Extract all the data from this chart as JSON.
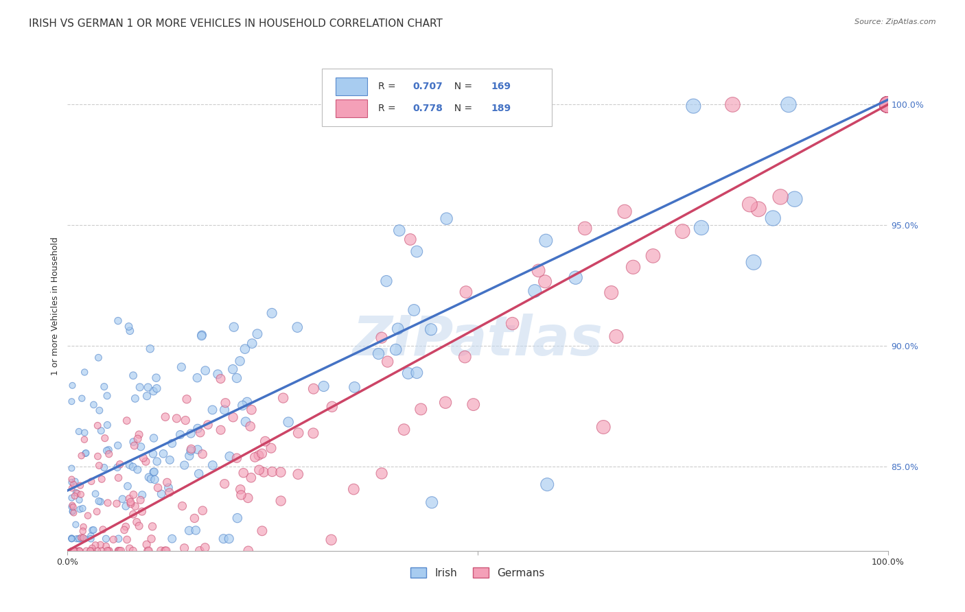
{
  "title": "IRISH VS GERMAN 1 OR MORE VEHICLES IN HOUSEHOLD CORRELATION CHART",
  "source": "Source: ZipAtlas.com",
  "ylabel": "1 or more Vehicles in Household",
  "ytick_labels": [
    "85.0%",
    "90.0%",
    "95.0%",
    "100.0%"
  ],
  "ytick_values": [
    0.85,
    0.9,
    0.95,
    1.0
  ],
  "xlim": [
    0.0,
    1.0
  ],
  "ylim": [
    0.815,
    1.018
  ],
  "irish_R": 0.707,
  "irish_N": 169,
  "german_R": 0.778,
  "german_N": 189,
  "irish_color": "#A8CCF0",
  "german_color": "#F4A0B8",
  "irish_edge_color": "#5588CC",
  "german_edge_color": "#CC5577",
  "irish_line_color": "#4472C4",
  "german_line_color": "#CC4466",
  "watermark": "ZIPatlas",
  "background_color": "#FFFFFF",
  "grid_color": "#CCCCCC",
  "scatter_alpha": 0.65,
  "title_fontsize": 11,
  "axis_label_fontsize": 9,
  "tick_fontsize": 9,
  "legend_fontsize": 10,
  "source_fontsize": 8,
  "irish_line_slope": 0.162,
  "irish_line_intercept": 0.84,
  "german_line_slope": 0.185,
  "german_line_intercept": 0.815
}
